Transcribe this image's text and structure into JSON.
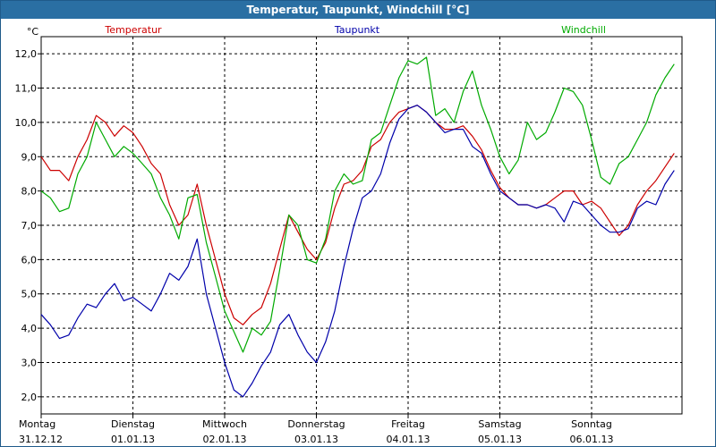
{
  "window": {
    "title": "Temperatur, Taupunkt, Windchill [°C]"
  },
  "chart_data": {
    "type": "line",
    "title": "Temperatur, Taupunkt, Windchill [°C]",
    "ylabel": "°C",
    "ylim": [
      1.5,
      12.5
    ],
    "yticks": [
      2.0,
      3.0,
      4.0,
      5.0,
      6.0,
      7.0,
      8.0,
      9.0,
      10.0,
      11.0,
      12.0
    ],
    "ytick_labels": [
      "2,0",
      "3,0",
      "4,0",
      "5,0",
      "6,0",
      "7,0",
      "8,0",
      "9,0",
      "10,0",
      "11,0",
      "12,0"
    ],
    "xlim": [
      0,
      7
    ],
    "days": [
      {
        "weekday": "Montag",
        "date": "31.12.12"
      },
      {
        "weekday": "Dienstag",
        "date": "01.01.13"
      },
      {
        "weekday": "Mittwoch",
        "date": "02.01.13"
      },
      {
        "weekday": "Donnerstag",
        "date": "03.01.13"
      },
      {
        "weekday": "Freitag",
        "date": "04.01.13"
      },
      {
        "weekday": "Samstag",
        "date": "05.01.13"
      },
      {
        "weekday": "Sonntag",
        "date": "06.01.13"
      }
    ],
    "grid": true,
    "legend": "top",
    "series": [
      {
        "name": "Temperatur",
        "color": "#cc0000",
        "points": [
          [
            0,
            9.0
          ],
          [
            0.1,
            8.6
          ],
          [
            0.2,
            8.6
          ],
          [
            0.3,
            8.3
          ],
          [
            0.4,
            9.0
          ],
          [
            0.5,
            9.5
          ],
          [
            0.6,
            10.2
          ],
          [
            0.7,
            10.0
          ],
          [
            0.8,
            9.6
          ],
          [
            0.9,
            9.9
          ],
          [
            1.0,
            9.7
          ],
          [
            1.1,
            9.3
          ],
          [
            1.2,
            8.8
          ],
          [
            1.3,
            8.5
          ],
          [
            1.4,
            7.6
          ],
          [
            1.5,
            7.0
          ],
          [
            1.6,
            7.3
          ],
          [
            1.7,
            8.2
          ],
          [
            1.8,
            7.0
          ],
          [
            1.9,
            6.0
          ],
          [
            2.0,
            5.0
          ],
          [
            2.1,
            4.3
          ],
          [
            2.2,
            4.1
          ],
          [
            2.3,
            4.4
          ],
          [
            2.4,
            4.6
          ],
          [
            2.5,
            5.3
          ],
          [
            2.6,
            6.3
          ],
          [
            2.7,
            7.3
          ],
          [
            2.8,
            6.8
          ],
          [
            2.9,
            6.3
          ],
          [
            3.0,
            6.0
          ],
          [
            3.1,
            6.5
          ],
          [
            3.2,
            7.5
          ],
          [
            3.3,
            8.2
          ],
          [
            3.4,
            8.3
          ],
          [
            3.5,
            8.6
          ],
          [
            3.6,
            9.3
          ],
          [
            3.7,
            9.5
          ],
          [
            3.8,
            10.0
          ],
          [
            3.9,
            10.3
          ],
          [
            4.0,
            10.4
          ],
          [
            4.1,
            10.5
          ],
          [
            4.2,
            10.3
          ],
          [
            4.3,
            10.0
          ],
          [
            4.4,
            9.8
          ],
          [
            4.5,
            9.8
          ],
          [
            4.6,
            9.9
          ],
          [
            4.7,
            9.6
          ],
          [
            4.8,
            9.2
          ],
          [
            4.9,
            8.6
          ],
          [
            5.0,
            8.1
          ],
          [
            5.1,
            7.8
          ],
          [
            5.2,
            7.6
          ],
          [
            5.3,
            7.6
          ],
          [
            5.4,
            7.5
          ],
          [
            5.5,
            7.6
          ],
          [
            5.6,
            7.8
          ],
          [
            5.7,
            8.0
          ],
          [
            5.8,
            8.0
          ],
          [
            5.9,
            7.6
          ],
          [
            6.0,
            7.7
          ],
          [
            6.1,
            7.5
          ],
          [
            6.2,
            7.1
          ],
          [
            6.3,
            6.7
          ],
          [
            6.4,
            7.0
          ],
          [
            6.5,
            7.6
          ],
          [
            6.6,
            8.0
          ],
          [
            6.7,
            8.3
          ],
          [
            6.8,
            8.7
          ],
          [
            6.9,
            9.1
          ],
          [
            7.0,
            9.0
          ],
          [
            7.1,
            8.8
          ],
          [
            7.2,
            8.6
          ],
          [
            7.25,
            8.6
          ]
        ]
      },
      {
        "name": "Taupunkt",
        "color": "#0000aa",
        "points": [
          [
            0,
            4.4
          ],
          [
            0.1,
            4.1
          ],
          [
            0.2,
            3.7
          ],
          [
            0.3,
            3.8
          ],
          [
            0.4,
            4.3
          ],
          [
            0.5,
            4.7
          ],
          [
            0.6,
            4.6
          ],
          [
            0.7,
            5.0
          ],
          [
            0.8,
            5.3
          ],
          [
            0.9,
            4.8
          ],
          [
            1.0,
            4.9
          ],
          [
            1.1,
            4.7
          ],
          [
            1.2,
            4.5
          ],
          [
            1.3,
            5.0
          ],
          [
            1.4,
            5.6
          ],
          [
            1.5,
            5.4
          ],
          [
            1.6,
            5.8
          ],
          [
            1.7,
            6.6
          ],
          [
            1.8,
            5.0
          ],
          [
            1.9,
            4.0
          ],
          [
            2.0,
            3.0
          ],
          [
            2.1,
            2.2
          ],
          [
            2.2,
            2.0
          ],
          [
            2.3,
            2.4
          ],
          [
            2.4,
            2.9
          ],
          [
            2.5,
            3.3
          ],
          [
            2.6,
            4.1
          ],
          [
            2.7,
            4.4
          ],
          [
            2.8,
            3.8
          ],
          [
            2.9,
            3.3
          ],
          [
            3.0,
            3.0
          ],
          [
            3.1,
            3.6
          ],
          [
            3.2,
            4.5
          ],
          [
            3.3,
            5.8
          ],
          [
            3.4,
            6.9
          ],
          [
            3.5,
            7.8
          ],
          [
            3.6,
            8.0
          ],
          [
            3.7,
            8.5
          ],
          [
            3.8,
            9.4
          ],
          [
            3.9,
            10.1
          ],
          [
            4.0,
            10.4
          ],
          [
            4.1,
            10.5
          ],
          [
            4.2,
            10.3
          ],
          [
            4.3,
            10.0
          ],
          [
            4.4,
            9.7
          ],
          [
            4.5,
            9.8
          ],
          [
            4.6,
            9.8
          ],
          [
            4.7,
            9.3
          ],
          [
            4.8,
            9.1
          ],
          [
            4.9,
            8.5
          ],
          [
            5.0,
            8.0
          ],
          [
            5.1,
            7.8
          ],
          [
            5.2,
            7.6
          ],
          [
            5.3,
            7.6
          ],
          [
            5.4,
            7.5
          ],
          [
            5.5,
            7.6
          ],
          [
            5.6,
            7.5
          ],
          [
            5.7,
            7.1
          ],
          [
            5.8,
            7.7
          ],
          [
            5.9,
            7.6
          ],
          [
            6.0,
            7.3
          ],
          [
            6.1,
            7.0
          ],
          [
            6.2,
            6.8
          ],
          [
            6.3,
            6.8
          ],
          [
            6.4,
            6.9
          ],
          [
            6.5,
            7.5
          ],
          [
            6.6,
            7.7
          ],
          [
            6.7,
            7.6
          ],
          [
            6.8,
            8.2
          ],
          [
            6.9,
            8.6
          ],
          [
            7.0,
            8.5
          ],
          [
            7.1,
            8.4
          ],
          [
            7.2,
            8.2
          ],
          [
            7.25,
            8.1
          ]
        ]
      },
      {
        "name": "Windchill",
        "color": "#00aa00",
        "points": [
          [
            0,
            8.0
          ],
          [
            0.1,
            7.8
          ],
          [
            0.2,
            7.4
          ],
          [
            0.3,
            7.5
          ],
          [
            0.4,
            8.5
          ],
          [
            0.5,
            9.0
          ],
          [
            0.6,
            10.0
          ],
          [
            0.7,
            9.5
          ],
          [
            0.8,
            9.0
          ],
          [
            0.9,
            9.3
          ],
          [
            1.0,
            9.1
          ],
          [
            1.1,
            8.8
          ],
          [
            1.2,
            8.5
          ],
          [
            1.3,
            7.8
          ],
          [
            1.4,
            7.3
          ],
          [
            1.5,
            6.6
          ],
          [
            1.6,
            7.8
          ],
          [
            1.7,
            7.9
          ],
          [
            1.8,
            6.5
          ],
          [
            1.9,
            5.5
          ],
          [
            2.0,
            4.5
          ],
          [
            2.1,
            3.9
          ],
          [
            2.2,
            3.3
          ],
          [
            2.3,
            4.0
          ],
          [
            2.4,
            3.8
          ],
          [
            2.5,
            4.2
          ],
          [
            2.6,
            5.7
          ],
          [
            2.7,
            7.3
          ],
          [
            2.8,
            7.0
          ],
          [
            2.9,
            6.0
          ],
          [
            3.0,
            5.9
          ],
          [
            3.1,
            6.6
          ],
          [
            3.2,
            8.0
          ],
          [
            3.3,
            8.5
          ],
          [
            3.4,
            8.2
          ],
          [
            3.5,
            8.3
          ],
          [
            3.6,
            9.5
          ],
          [
            3.7,
            9.7
          ],
          [
            3.8,
            10.5
          ],
          [
            3.9,
            11.3
          ],
          [
            4.0,
            11.8
          ],
          [
            4.1,
            11.7
          ],
          [
            4.2,
            11.9
          ],
          [
            4.3,
            10.2
          ],
          [
            4.4,
            10.4
          ],
          [
            4.5,
            10.0
          ],
          [
            4.6,
            10.9
          ],
          [
            4.7,
            11.5
          ],
          [
            4.8,
            10.5
          ],
          [
            4.9,
            9.8
          ],
          [
            5.0,
            9.0
          ],
          [
            5.1,
            8.5
          ],
          [
            5.2,
            8.9
          ],
          [
            5.3,
            10.0
          ],
          [
            5.4,
            9.5
          ],
          [
            5.5,
            9.7
          ],
          [
            5.6,
            10.3
          ],
          [
            5.7,
            11.0
          ],
          [
            5.8,
            10.9
          ],
          [
            5.9,
            10.5
          ],
          [
            6.0,
            9.5
          ],
          [
            6.1,
            8.4
          ],
          [
            6.2,
            8.2
          ],
          [
            6.3,
            8.8
          ],
          [
            6.4,
            9.0
          ],
          [
            6.5,
            9.5
          ],
          [
            6.6,
            10.0
          ],
          [
            6.7,
            10.8
          ],
          [
            6.8,
            11.3
          ],
          [
            6.9,
            11.7
          ],
          [
            7.0,
            11.6
          ],
          [
            7.1,
            11.5
          ],
          [
            7.2,
            11.4
          ],
          [
            7.25,
            11.6
          ]
        ]
      }
    ]
  }
}
